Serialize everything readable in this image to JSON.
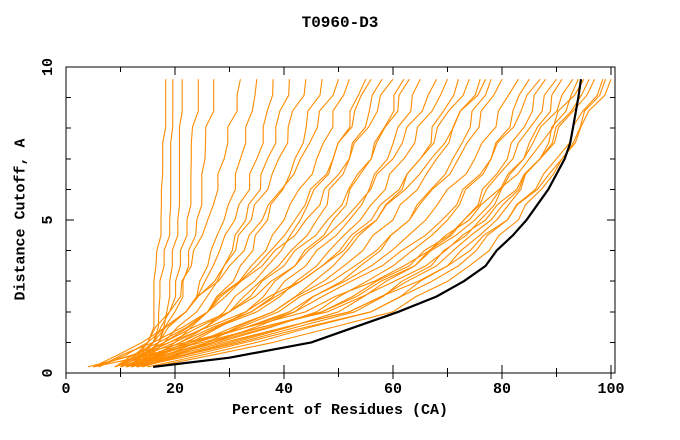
{
  "page": {
    "background": "#ffffff"
  },
  "chart_data": {
    "type": "line",
    "title": "T0960-D3",
    "xlabel": "Percent of Residues (CA)",
    "ylabel": "Distance Cutoff, A",
    "xlim": [
      0,
      100.7
    ],
    "ylim": [
      0,
      10
    ],
    "x_major_ticks": [
      0,
      20,
      40,
      60,
      80,
      100
    ],
    "x_minor_tick_step": 10,
    "y_major_ticks": [
      0,
      5,
      10
    ],
    "y_minor_tick_step": 1,
    "grid": false,
    "legend": "none",
    "series_colors": {
      "models": "#ff8c00",
      "reference": "#000000"
    },
    "reference_series": {
      "name": "reference-model",
      "cutoffs": [
        0.2,
        0.5,
        1,
        1.5,
        2,
        2.5,
        3,
        3.5,
        4,
        4.5,
        5,
        5.5,
        6,
        6.5,
        7,
        7.5,
        8,
        8.5,
        9,
        9.6
      ],
      "percents": [
        16,
        30,
        45,
        53,
        61,
        68,
        73,
        77,
        79,
        82,
        84.5,
        86.5,
        88.5,
        90,
        91.5,
        92.5,
        93,
        93.5,
        94,
        94.5
      ]
    },
    "model_series_cutoffs": [
      0.2,
      1,
      2,
      3.5,
      5,
      7,
      9.6
    ],
    "model_series": [
      [
        13,
        15,
        16,
        16.5,
        17,
        17.5,
        18
      ],
      [
        14,
        16,
        17,
        18,
        18.5,
        19,
        19.5
      ],
      [
        15,
        17,
        18.5,
        19.5,
        20,
        20.5,
        21
      ],
      [
        12,
        16,
        19,
        21,
        22,
        23,
        24
      ],
      [
        13,
        17,
        20,
        22.5,
        24,
        25.5,
        27
      ],
      [
        10,
        15,
        19,
        23,
        26,
        29,
        32
      ],
      [
        11,
        17,
        22,
        26,
        29,
        32,
        35
      ],
      [
        9,
        16,
        22,
        27,
        31,
        35,
        38
      ],
      [
        12,
        18,
        24,
        29,
        33,
        37,
        41
      ],
      [
        6,
        15,
        22,
        29,
        34,
        39,
        44
      ],
      [
        13,
        20,
        26,
        32,
        37,
        42,
        47
      ],
      [
        5,
        14,
        22,
        30,
        36,
        43,
        50
      ],
      [
        10,
        18,
        26,
        34,
        40,
        46,
        52
      ],
      [
        12,
        21,
        29,
        37,
        43,
        49,
        55
      ],
      [
        9,
        17,
        26,
        35,
        42,
        49,
        56
      ],
      [
        11,
        20,
        30,
        39,
        46,
        52,
        58
      ],
      [
        6,
        16,
        26,
        36,
        44,
        52,
        60
      ],
      [
        13,
        23,
        33,
        42,
        49,
        56,
        62
      ],
      [
        10,
        19,
        30,
        40,
        48,
        56,
        63
      ],
      [
        12,
        22,
        34,
        44,
        52,
        59,
        65
      ],
      [
        9,
        18,
        30,
        42,
        51,
        60,
        68
      ],
      [
        11,
        22,
        35,
        46,
        54,
        62,
        70
      ],
      [
        14,
        26,
        38,
        49,
        57,
        65,
        72
      ],
      [
        10,
        21,
        34,
        47,
        56,
        65,
        74
      ],
      [
        12,
        24,
        38,
        51,
        60,
        68,
        76
      ],
      [
        5,
        19,
        33,
        47,
        57,
        67,
        77
      ],
      [
        13,
        27,
        42,
        54,
        63,
        71,
        78
      ],
      [
        11,
        24,
        39,
        53,
        63,
        72,
        80
      ],
      [
        10,
        24,
        41,
        56,
        66,
        75,
        83
      ],
      [
        12,
        28,
        46,
        60,
        70,
        78,
        85
      ],
      [
        9,
        23,
        42,
        58,
        69,
        78,
        87
      ],
      [
        14,
        31,
        50,
        64,
        73,
        81,
        88
      ],
      [
        11,
        27,
        47,
        63,
        73,
        82,
        90
      ],
      [
        13,
        32,
        53,
        67,
        76,
        84,
        91
      ],
      [
        10,
        26,
        47,
        64,
        75,
        84,
        93
      ],
      [
        15,
        35,
        56,
        70,
        79,
        87,
        94
      ],
      [
        12,
        30,
        52,
        68,
        78,
        87,
        96
      ],
      [
        5,
        25,
        48,
        66,
        77,
        87,
        97
      ],
      [
        13,
        33,
        56,
        72,
        81,
        90,
        98.5
      ],
      [
        11,
        29,
        52,
        70,
        81,
        91,
        100
      ],
      [
        16,
        38,
        60,
        74,
        83,
        91,
        99
      ],
      [
        4,
        22,
        44,
        62,
        74,
        85,
        95
      ]
    ]
  }
}
